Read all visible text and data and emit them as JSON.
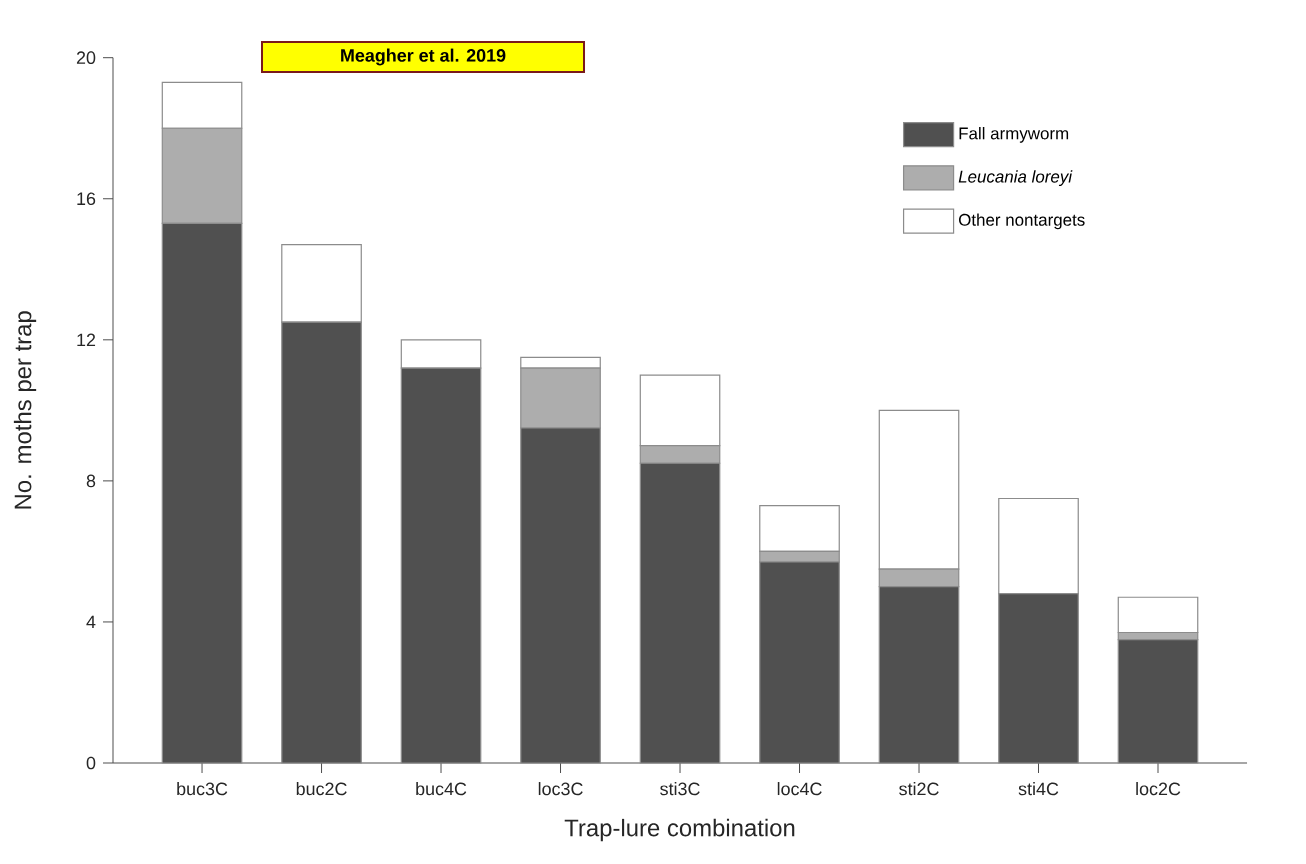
{
  "chart_data": {
    "type": "bar",
    "stacked": true,
    "xlabel": "Trap-lure combination",
    "ylabel": "No. moths per trap",
    "categories": [
      "buc3C",
      "buc2C",
      "buc4C",
      "loc3C",
      "sti3C",
      "loc4C",
      "sti2C",
      "sti4C",
      "loc2C"
    ],
    "series": [
      {
        "name": "Fall armyworm",
        "color": "#505050",
        "values": [
          15.3,
          12.5,
          11.2,
          9.5,
          8.5,
          5.7,
          5.0,
          4.8,
          3.5
        ]
      },
      {
        "name": "*Leucania loreyi*",
        "color": "#adadad",
        "values": [
          2.7,
          0,
          0,
          1.7,
          0.5,
          0.3,
          0.5,
          0,
          0.2
        ]
      },
      {
        "name": "Other nontargets",
        "color": "#ffffff",
        "values": [
          1.3,
          2.2,
          0.8,
          0.3,
          2.0,
          1.3,
          4.5,
          2.7,
          1.0
        ]
      }
    ],
    "ylim": [
      0,
      20
    ],
    "yticks": [
      0,
      4,
      8,
      12,
      16,
      20
    ],
    "grid": false,
    "legend": "top right",
    "annotations": [
      "Meagher et al. 2019"
    ]
  }
}
